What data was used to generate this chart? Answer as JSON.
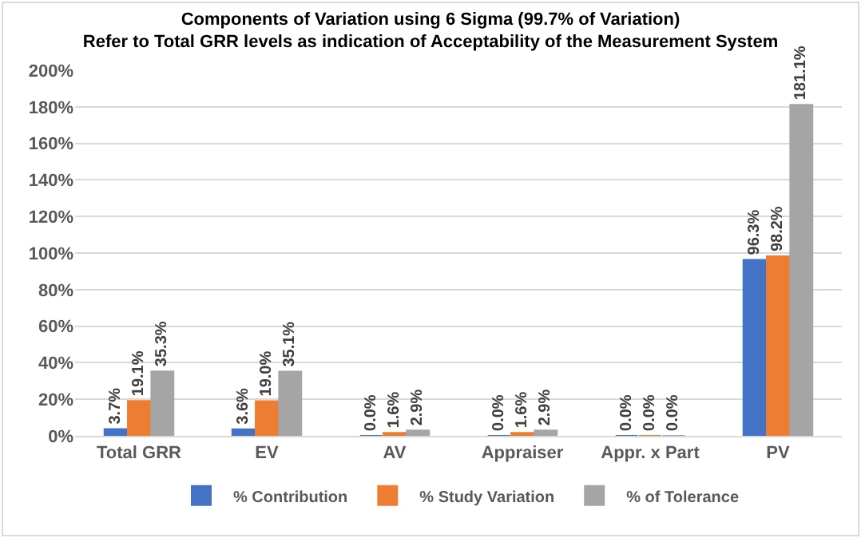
{
  "chart_data": {
    "type": "bar",
    "title": "Components of Variation using 6 Sigma (99.7% of Variation)\nRefer to Total GRR levels as indication of Acceptability of the Measurement System",
    "categories": [
      "Total GRR",
      "EV",
      "AV",
      "Appraiser",
      "Appr. x Part",
      "PV"
    ],
    "series": [
      {
        "name": "% Contribution",
        "color": "#4472c4",
        "values": [
          3.7,
          3.6,
          0.0,
          0.0,
          0.0,
          96.3
        ],
        "value_labels": [
          "3.7%",
          "3.6%",
          "0.0%",
          "0.0%",
          "0.0%",
          "96.3%"
        ]
      },
      {
        "name": "% Study Variation",
        "color": "#ed7d31",
        "values": [
          19.1,
          19.0,
          1.6,
          1.6,
          0.0,
          98.2
        ],
        "value_labels": [
          "19.1%",
          "19.0%",
          "1.6%",
          "1.6%",
          "0.0%",
          "98.2%"
        ]
      },
      {
        "name": "% of Tolerance",
        "color": "#a5a5a5",
        "values": [
          35.3,
          35.1,
          2.9,
          2.9,
          0.0,
          181.1
        ],
        "value_labels": [
          "35.3%",
          "35.1%",
          "2.9%",
          "2.9%",
          "0.0%",
          "181.1%"
        ]
      }
    ],
    "ylim": [
      0,
      200
    ],
    "yticks": [
      {
        "value": 0,
        "label": "0%"
      },
      {
        "value": 20,
        "label": "20%"
      },
      {
        "value": 40,
        "label": "40%"
      },
      {
        "value": 60,
        "label": "60%"
      },
      {
        "value": 80,
        "label": "80%"
      },
      {
        "value": 100,
        "label": "100%"
      },
      {
        "value": 120,
        "label": "120%"
      },
      {
        "value": 140,
        "label": "140%"
      },
      {
        "value": 160,
        "label": "160%"
      },
      {
        "value": 180,
        "label": "180%"
      },
      {
        "value": 200,
        "label": "200%"
      }
    ],
    "grid": "y",
    "legend": "bottom"
  }
}
